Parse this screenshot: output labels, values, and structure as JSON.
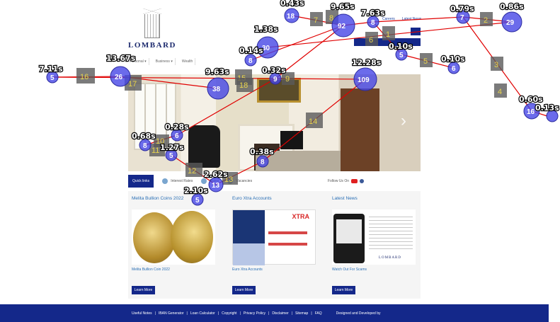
{
  "brand": {
    "logo_text": "LOMBARD"
  },
  "top_nav": [
    "Careers",
    "Latest News"
  ],
  "main_nav": [
    "Personal ▾",
    "Business ▾",
    "Wealth"
  ],
  "quick_bar": {
    "label": "Quick links",
    "items": [
      "Interest Rates",
      "Rates",
      "Vacancies"
    ],
    "follow": "Follow Us On"
  },
  "cards": [
    {
      "title": "Melita Bullion Coins 2022",
      "caption": "Melita Bullion Coin 2022",
      "button": "Learn More"
    },
    {
      "title": "Euro Xtra Accounts",
      "caption": "Euro Xtra Accounts",
      "button": "Learn More",
      "poster_brand": "XTRA"
    },
    {
      "title": "Latest News",
      "caption": "Watch Out For Scams",
      "button": "Learn More",
      "poster_brand": "LOMBARD"
    }
  ],
  "footer": {
    "links": [
      "Useful Notes",
      "IBAN Generator",
      "Loan Calculator",
      "Copyright",
      "Privacy Policy",
      "Disclaimer",
      "Sitemap",
      "FAQ"
    ],
    "designed": "Designed and Developed by"
  },
  "overlay": {
    "fixations": [
      {
        "label": "18",
        "duration": "0.43s"
      },
      {
        "label": "92",
        "duration": "9.65s"
      },
      {
        "label": "8",
        "duration": "7.63s"
      },
      {
        "label": "7",
        "duration": "0.79s"
      },
      {
        "label": "29",
        "duration": "0.86s"
      },
      {
        "label": "30",
        "duration": "1.38s"
      },
      {
        "label": "8",
        "duration": "0.14s"
      },
      {
        "label": "5",
        "duration": "0.10s"
      },
      {
        "label": "6",
        "duration": "0.10s"
      },
      {
        "label": "5",
        "duration": "7.11s"
      },
      {
        "label": "26",
        "duration": "13.67s"
      },
      {
        "label": "38",
        "duration": "9.63s"
      },
      {
        "label": "9",
        "duration": "0.32s"
      },
      {
        "label": "109",
        "duration": "12.28s"
      },
      {
        "label": "16",
        "duration": "0.60s"
      },
      {
        "label": "",
        "duration": "0.13s"
      },
      {
        "label": "6",
        "duration": "0.28s"
      },
      {
        "label": "8",
        "duration": "0.68s"
      },
      {
        "label": "5",
        "duration": "1.27s"
      },
      {
        "label": "8",
        "duration": "0.38s"
      },
      {
        "label": "13",
        "duration": "2.62s"
      },
      {
        "label": "5",
        "duration": "2.10s"
      }
    ],
    "saccades": [
      "1",
      "2",
      "3",
      "4",
      "5",
      "6",
      "7",
      "8",
      "9",
      "10",
      "11",
      "12",
      "13",
      "14",
      "15",
      "16",
      "17",
      "18"
    ]
  }
}
